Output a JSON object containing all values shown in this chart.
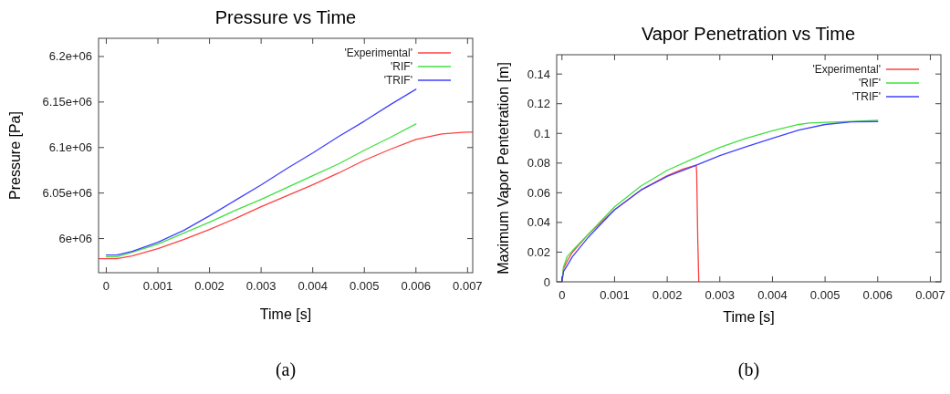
{
  "chart_data": [
    {
      "type": "line",
      "title": "Pressure vs Time",
      "xlabel": "Time [s]",
      "ylabel": "Pressure [Pa]",
      "annotations": [
        "(a)"
      ],
      "legend": "top right",
      "grid": false,
      "marker": "none",
      "line_style": "solid",
      "xlim": [
        -0.00015,
        0.0071
      ],
      "xticks": [
        0,
        0.001,
        0.002,
        0.003,
        0.004,
        0.005,
        0.006,
        0.007
      ],
      "ylim": [
        5962500,
        6220000
      ],
      "yticks": [
        {
          "value": 6000000,
          "label": "6e+06"
        },
        {
          "value": 6050000,
          "label": "6.05e+06"
        },
        {
          "value": 6100000,
          "label": "6.1e+06"
        },
        {
          "value": 6150000,
          "label": "6.15e+06"
        },
        {
          "value": 6200000,
          "label": "6.2e+06"
        }
      ],
      "series": [
        {
          "name": "'Experimental'",
          "color": "#ff4040",
          "x": [
            -0.00015,
            0,
            0.0002,
            0.0005,
            0.001,
            0.0015,
            0.002,
            0.0025,
            0.003,
            0.0035,
            0.004,
            0.0045,
            0.005,
            0.0055,
            0.006,
            0.0065,
            0.007,
            0.0071
          ],
          "values": [
            5978000,
            5978000,
            5978000,
            5981000,
            5989000,
            5999000,
            6010000,
            6022000,
            6035000,
            6047000,
            6059000,
            6072000,
            6086000,
            6098000,
            6109000,
            6115000,
            6117000,
            6117000
          ]
        },
        {
          "name": "'RIF'",
          "color": "#40e040",
          "x": [
            0,
            0.0002,
            0.0005,
            0.001,
            0.0015,
            0.002,
            0.0025,
            0.003,
            0.0035,
            0.004,
            0.0045,
            0.005,
            0.0055,
            0.006
          ],
          "values": [
            5980000,
            5980000,
            5985000,
            5994000,
            6006000,
            6018000,
            6031000,
            6043000,
            6056000,
            6069000,
            6082000,
            6097000,
            6111000,
            6126000
          ]
        },
        {
          "name": "'TRIF'",
          "color": "#4040ff",
          "x": [
            0,
            0.0002,
            0.0005,
            0.001,
            0.0015,
            0.002,
            0.0025,
            0.003,
            0.0035,
            0.004,
            0.0045,
            0.005,
            0.0055,
            0.006
          ],
          "values": [
            5982000,
            5982000,
            5986000,
            5996000,
            6009000,
            6025000,
            6042000,
            6059000,
            6077000,
            6094000,
            6112000,
            6129000,
            6147000,
            6164000
          ]
        }
      ]
    },
    {
      "type": "line",
      "title": "Vapor Penetration vs Time",
      "xlabel": "Time [s]",
      "ylabel": "Maximum Vapor Pentetration [m]",
      "annotations": [
        "(b)"
      ],
      "legend": "top right",
      "grid": false,
      "marker": "none",
      "line_style": "solid",
      "xlim": [
        -0.0001,
        0.0072
      ],
      "xticks": [
        0,
        0.001,
        0.002,
        0.003,
        0.004,
        0.005,
        0.006,
        0.007
      ],
      "ylim": [
        0,
        0.153
      ],
      "yticks": [
        0,
        0.02,
        0.04,
        0.06,
        0.08,
        0.1,
        0.12,
        0.14
      ],
      "series": [
        {
          "name": "'Experimental'",
          "color": "#ff4040",
          "x": [
            0,
            3e-05,
            0.0001,
            0.0002,
            0.0005,
            0.001,
            0.0015,
            0.002,
            0.0023,
            0.00255,
            0.00256,
            0.00258,
            0.0026
          ],
          "values": [
            0,
            0.009,
            0.014,
            0.02,
            0.032,
            0.0485,
            0.0618,
            0.0715,
            0.076,
            0.0785,
            0.0735,
            0.03,
            0
          ]
        },
        {
          "name": "'RIF'",
          "color": "#40e040",
          "x": [
            0,
            3e-05,
            0.0001,
            0.0002,
            0.0005,
            0.001,
            0.0015,
            0.002,
            0.0025,
            0.003,
            0.0035,
            0.004,
            0.0045,
            0.0047,
            0.005,
            0.0055,
            0.006
          ],
          "values": [
            0,
            0.01,
            0.017,
            0.021,
            0.032,
            0.0505,
            0.0645,
            0.0751,
            0.083,
            0.0905,
            0.0967,
            0.1018,
            0.106,
            0.107,
            0.1074,
            0.108,
            0.1088
          ]
        },
        {
          "name": "'TRIF'",
          "color": "#4040ff",
          "x": [
            0,
            3e-05,
            0.0001,
            0.0002,
            0.0005,
            0.001,
            0.0015,
            0.002,
            0.0025,
            0.003,
            0.0035,
            0.004,
            0.0045,
            0.005,
            0.0055,
            0.006
          ],
          "values": [
            0,
            0.007,
            0.011,
            0.017,
            0.03,
            0.0485,
            0.0618,
            0.071,
            0.0778,
            0.085,
            0.091,
            0.0967,
            0.1022,
            0.106,
            0.1078,
            0.108
          ]
        }
      ]
    }
  ]
}
